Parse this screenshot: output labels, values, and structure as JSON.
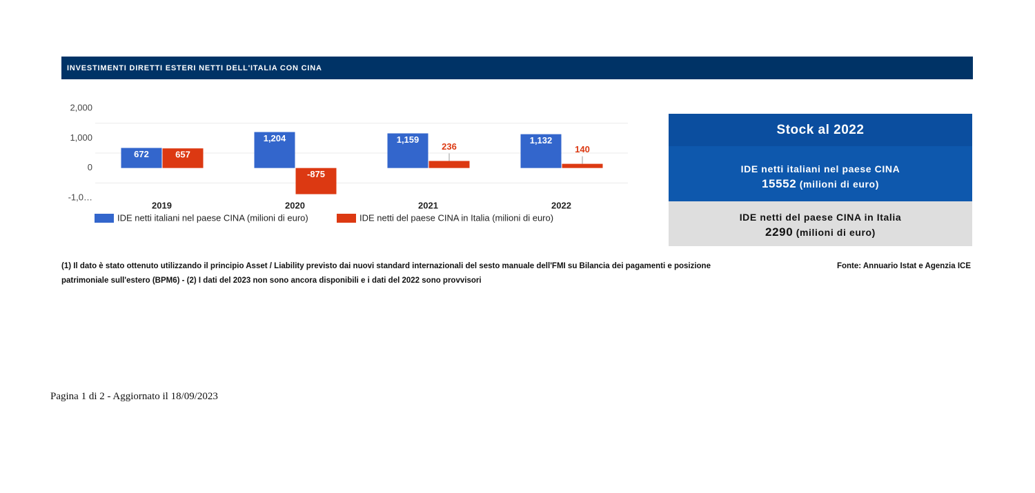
{
  "header": {
    "title": "INVESTIMENTI DIRETTI ESTERI NETTI DELL'ITALIA CON CINA"
  },
  "chart_data": {
    "type": "bar",
    "categories": [
      "2019",
      "2020",
      "2021",
      "2022"
    ],
    "series": [
      {
        "name": "IDE netti italiani nel paese CINA (milioni di euro)",
        "color": "#3366cc",
        "values": [
          672,
          1204,
          1159,
          1132
        ],
        "value_labels": [
          "672",
          "1,204",
          "1,159",
          "1,132"
        ]
      },
      {
        "name": "IDE netti del paese CINA in Italia (milioni di euro)",
        "color": "#dc3912",
        "values": [
          657,
          -875,
          236,
          140
        ],
        "value_labels": [
          "657",
          "-875",
          "236",
          "140"
        ]
      }
    ],
    "ylim": [
      -1000,
      2000
    ],
    "yticks": [
      {
        "value": 2000,
        "label": "2,000"
      },
      {
        "value": 1000,
        "label": "1,000"
      },
      0,
      {
        "value": -1000,
        "label": "-1,0…"
      }
    ],
    "minor_yticks": [
      1500,
      500,
      -500
    ],
    "grid": true,
    "legend": "bottom"
  },
  "stock": {
    "title": "Stock al 2022",
    "italian": {
      "label": "IDE netti italiani nel paese CINA",
      "value": 15552,
      "unit": "(milioni di euro)"
    },
    "chinese": {
      "label": "IDE netti del paese CINA in Italia",
      "value": 2290,
      "unit": "(milioni di euro)"
    }
  },
  "notes": "(1) Il dato è stato ottenuto utilizzando il principio Asset / Liability previsto dai nuovi standard internazionali del sesto manuale dell'FMI su Bilancia dei pagamenti e posizione patrimoniale sull'estero (BPM6) - (2) I dati del 2023 non sono ancora disponibili e i dati del 2022 sono provvisori",
  "source": "Fonte: Annuario Istat e Agenzia ICE",
  "footer": "Pagina 1 di 2 - Aggiornato il 18/09/2023"
}
